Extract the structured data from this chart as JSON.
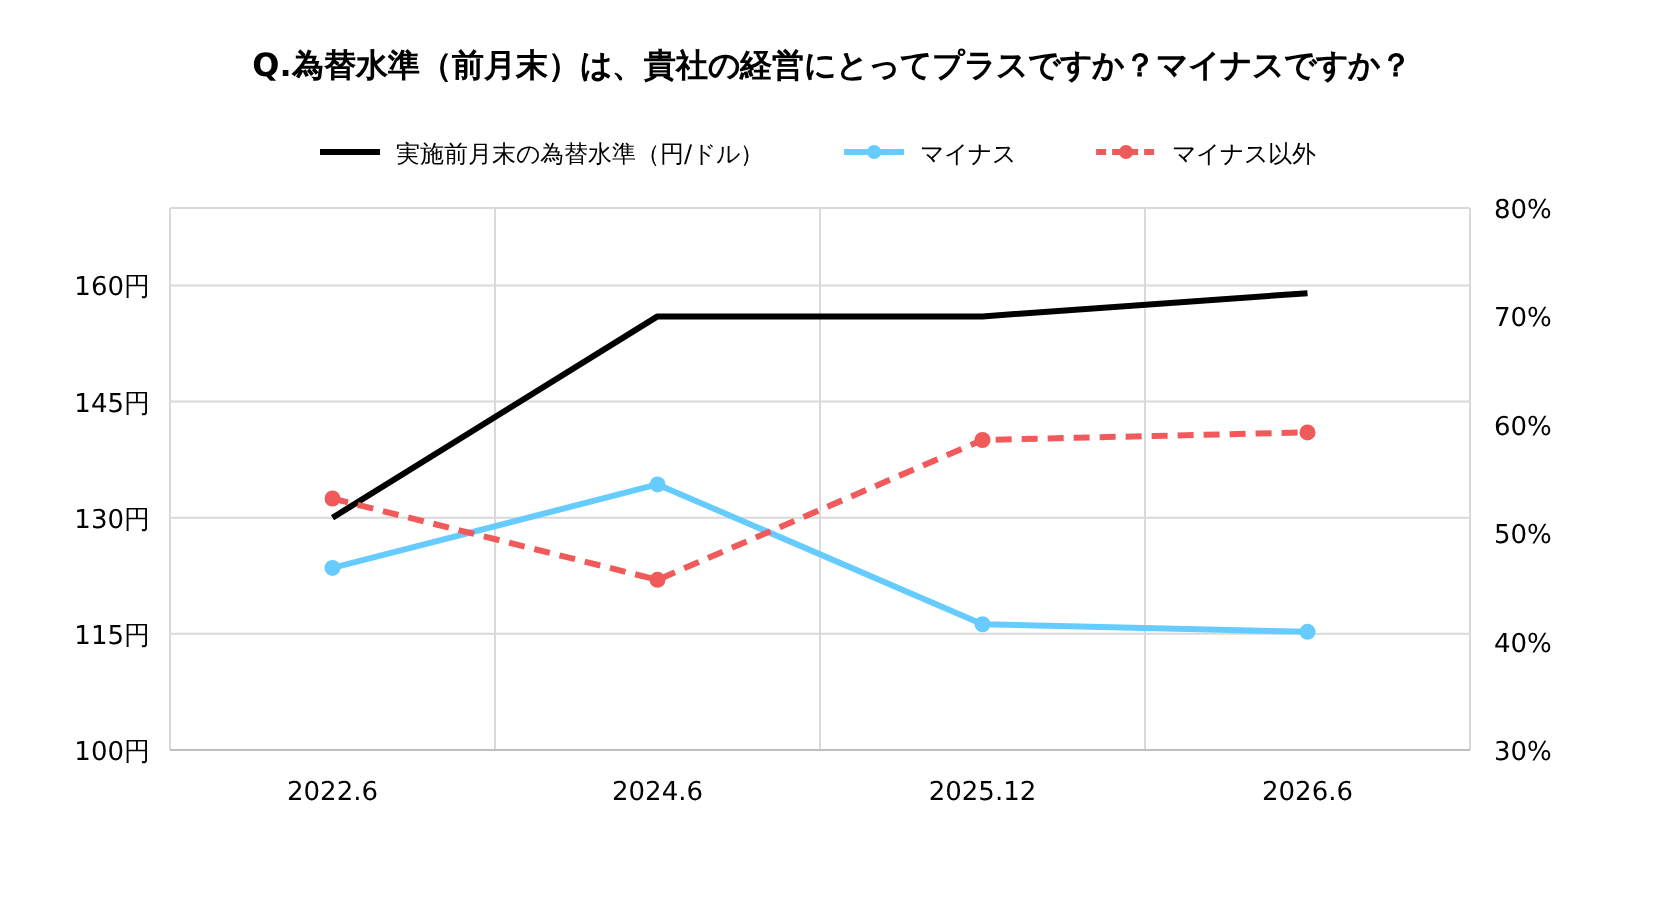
{
  "chart_data": {
    "type": "line",
    "title": "Q.為替水準（前月末）は、貴社の経営にとってプラスですか？マイナスですか？",
    "categories": [
      "2022.6",
      "2024.6",
      "2025.12",
      "2026.6"
    ],
    "series": [
      {
        "name": "実施前月末の為替水準（円/ドル）",
        "color": "#000000",
        "values": [
          130,
          156,
          156,
          159
        ],
        "marker": "none",
        "line_style": "solid"
      },
      {
        "name": "マイナス",
        "color": "#66ccff",
        "values": [
          46.8,
          54.5,
          41.6,
          40.9
        ],
        "axis": "y2",
        "marker": "circle",
        "line_style": "solid"
      },
      {
        "name": "マイナス以外",
        "color": "#f05a5a",
        "values": [
          53.2,
          45.7,
          58.6,
          59.3
        ],
        "axis": "y2",
        "marker": "circle",
        "line_style": "dashed"
      }
    ],
    "ylim": [
      100,
      170
    ],
    "yticks": [
      {
        "value": 100,
        "label": "100円"
      },
      {
        "value": 115,
        "label": "115円"
      },
      {
        "value": 130,
        "label": "130円"
      },
      {
        "value": 145,
        "label": "145円"
      },
      {
        "value": 160,
        "label": "160円"
      }
    ],
    "y2lim": [
      30,
      80
    ],
    "y2ticks": [
      {
        "value": 30,
        "label": "30%"
      },
      {
        "value": 40,
        "label": "40%"
      },
      {
        "value": 50,
        "label": "50%"
      },
      {
        "value": 60,
        "label": "60%"
      },
      {
        "value": 70,
        "label": "70%"
      },
      {
        "value": 80,
        "label": "80%"
      }
    ],
    "grid": true,
    "legend": "top"
  }
}
